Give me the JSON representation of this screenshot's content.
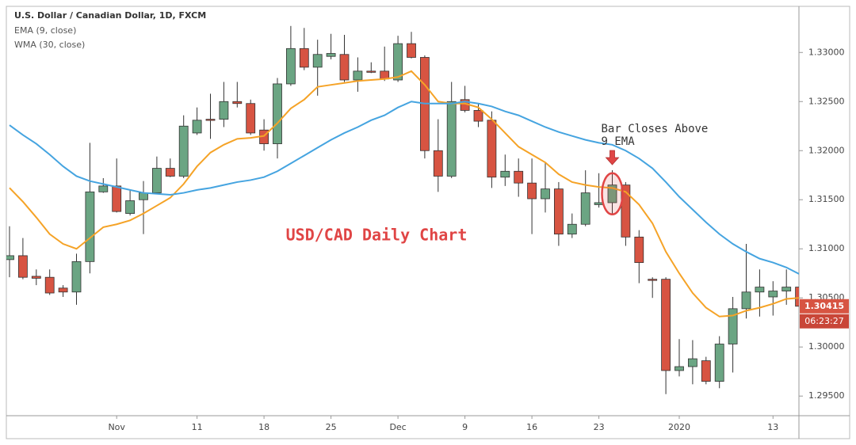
{
  "chart_data": {
    "type": "candlestick",
    "title": "U.S. Dollar / Canadian Dollar, 1D, FXCM",
    "categories": [
      null,
      null,
      null,
      null,
      null,
      null,
      null,
      null,
      "Nov",
      null,
      null,
      null,
      null,
      null,
      "11",
      null,
      null,
      null,
      null,
      "18",
      null,
      null,
      null,
      null,
      "25",
      null,
      null,
      null,
      null,
      "Dec",
      null,
      null,
      null,
      null,
      "9",
      null,
      null,
      null,
      null,
      "16",
      null,
      null,
      null,
      null,
      "23",
      null,
      null,
      null,
      null,
      null,
      "2020",
      null,
      null,
      null,
      null,
      null,
      null,
      "13",
      null,
      null
    ],
    "open": [
      1.3089,
      1.3093,
      1.3072,
      1.3071,
      1.306,
      1.3056,
      1.3087,
      1.3158,
      1.3164,
      1.3136,
      1.315,
      1.3157,
      1.3182,
      1.3174,
      1.3218,
      1.3232,
      1.3232,
      1.325,
      1.3248,
      1.3221,
      1.3207,
      1.3268,
      1.3304,
      1.3285,
      1.3296,
      1.3298,
      1.3272,
      1.3281,
      1.3281,
      1.3272,
      1.3309,
      1.3295,
      1.32,
      1.3174,
      1.3252,
      1.3241,
      1.3231,
      1.3173,
      1.3179,
      1.3167,
      1.3151,
      1.3161,
      1.3115,
      1.3125,
      1.3145,
      1.3147,
      1.3165,
      1.3112,
      1.3069,
      1.3069,
      1.2976,
      1.298,
      1.2986,
      1.2965,
      1.3003,
      1.3039,
      1.3056,
      1.3051,
      1.3057,
      1.3061
    ],
    "high": [
      1.3123,
      1.3111,
      1.3079,
      1.3079,
      1.3063,
      1.3095,
      1.3208,
      1.3172,
      1.3192,
      1.316,
      1.3169,
      1.3194,
      1.3192,
      1.3236,
      1.3244,
      1.3258,
      1.327,
      1.327,
      1.3252,
      1.3232,
      1.3274,
      1.3327,
      1.3325,
      1.3313,
      1.3319,
      1.3318,
      1.3295,
      1.329,
      1.3306,
      1.3317,
      1.3321,
      1.3297,
      1.3232,
      1.327,
      1.3266,
      1.3248,
      1.324,
      1.3196,
      1.3192,
      1.3192,
      1.3188,
      1.3168,
      1.3136,
      1.318,
      1.3177,
      1.318,
      1.3168,
      1.3119,
      1.3071,
      1.3071,
      1.3008,
      1.3007,
      1.299,
      1.3011,
      1.3051,
      1.3105,
      1.3079,
      1.3067,
      1.3079,
      1.3071
    ],
    "low": [
      1.3071,
      1.3069,
      1.3063,
      1.3053,
      1.3051,
      1.3043,
      1.3075,
      1.3157,
      1.3137,
      1.3134,
      1.3115,
      1.3156,
      1.3173,
      1.3172,
      1.3216,
      1.3212,
      1.3224,
      1.3244,
      1.3216,
      1.32,
      1.3192,
      1.3266,
      1.3282,
      1.3256,
      1.3293,
      1.327,
      1.326,
      1.3279,
      1.3271,
      1.327,
      1.3294,
      1.3192,
      1.3158,
      1.3172,
      1.3239,
      1.3224,
      1.3162,
      1.3164,
      1.3153,
      1.3115,
      1.3137,
      1.3103,
      1.3111,
      1.3123,
      1.3142,
      1.3136,
      1.3103,
      1.3065,
      1.305,
      1.2952,
      1.297,
      1.2962,
      1.2962,
      1.2958,
      1.2974,
      1.3029,
      1.3031,
      1.3032,
      1.3043,
      1.3043
    ],
    "close": [
      1.3093,
      1.3071,
      1.307,
      1.3055,
      1.3056,
      1.3087,
      1.3158,
      1.3164,
      1.3138,
      1.3149,
      1.3157,
      1.3182,
      1.3174,
      1.3225,
      1.3231,
      1.3231,
      1.325,
      1.3248,
      1.3218,
      1.3207,
      1.3268,
      1.3304,
      1.3285,
      1.3298,
      1.3299,
      1.3272,
      1.3281,
      1.328,
      1.3273,
      1.3309,
      1.3295,
      1.32,
      1.3174,
      1.325,
      1.3241,
      1.323,
      1.3173,
      1.3179,
      1.3167,
      1.3151,
      1.3161,
      1.3115,
      1.3125,
      1.3157,
      1.3147,
      1.3165,
      1.3112,
      1.3086,
      1.3068,
      1.2976,
      1.298,
      1.2988,
      1.2965,
      1.3003,
      1.3039,
      1.3056,
      1.3061,
      1.3057,
      1.3061,
      1.30415
    ],
    "up_color": "#6ba583",
    "down_color": "#d75442",
    "lines": [
      {
        "name": "EMA (9, close)",
        "color": "#f5a327",
        "values": [
          1.3162,
          1.3148,
          1.3132,
          1.3115,
          1.3105,
          1.31,
          1.3111,
          1.3122,
          1.3125,
          1.3129,
          1.3136,
          1.3144,
          1.3152,
          1.3166,
          1.3184,
          1.3198,
          1.3206,
          1.3212,
          1.3213,
          1.3215,
          1.3228,
          1.3243,
          1.3252,
          1.3265,
          1.3267,
          1.3269,
          1.3271,
          1.3272,
          1.3273,
          1.3275,
          1.3281,
          1.3267,
          1.325,
          1.3248,
          1.3248,
          1.3244,
          1.3232,
          1.3218,
          1.3204,
          1.3196,
          1.3188,
          1.3176,
          1.3168,
          1.3165,
          1.3163,
          1.3162,
          1.3158,
          1.3145,
          1.3126,
          1.3097,
          1.3075,
          1.3055,
          1.304,
          1.3031,
          1.3032,
          1.3037,
          1.304,
          1.3044,
          1.3049,
          1.305
        ]
      },
      {
        "name": "WMA (30, close)",
        "color": "#45a4e0",
        "values": [
          1.3226,
          1.3216,
          1.3207,
          1.3196,
          1.3184,
          1.3174,
          1.3169,
          1.3166,
          1.3163,
          1.316,
          1.3157,
          1.3156,
          1.3155,
          1.3157,
          1.316,
          1.3162,
          1.3165,
          1.3168,
          1.317,
          1.3173,
          1.3179,
          1.3187,
          1.3195,
          1.3203,
          1.3211,
          1.3218,
          1.3224,
          1.3231,
          1.3236,
          1.3244,
          1.325,
          1.3248,
          1.3248,
          1.3248,
          1.325,
          1.3248,
          1.3245,
          1.324,
          1.3236,
          1.323,
          1.3224,
          1.3219,
          1.3215,
          1.3211,
          1.3208,
          1.3206,
          1.32,
          1.3192,
          1.3182,
          1.3168,
          1.3153,
          1.314,
          1.3127,
          1.3115,
          1.3105,
          1.3097,
          1.309,
          1.3086,
          1.3081,
          1.3074
        ]
      }
    ],
    "ylim": [
      1.293,
      1.3347
    ],
    "yticks": [
      {
        "value": 1.295,
        "label": "1.29500"
      },
      {
        "value": 1.3,
        "label": "1.30000"
      },
      {
        "value": 1.305,
        "label": "1.30500"
      },
      {
        "value": 1.31,
        "label": "1.31000"
      },
      {
        "value": 1.315,
        "label": "1.31500"
      },
      {
        "value": 1.32,
        "label": "1.32000"
      },
      {
        "value": 1.325,
        "label": "1.32500"
      },
      {
        "value": 1.33,
        "label": "1.33000"
      }
    ],
    "countdown": "06:23:27",
    "annotation": {
      "lines": [
        "Bar Closes Above",
        "9 EMA"
      ],
      "candle": 45,
      "color": "#e04545"
    },
    "chart_label": {
      "text": "USD/CAD Daily Chart",
      "color": "#e04545"
    }
  }
}
